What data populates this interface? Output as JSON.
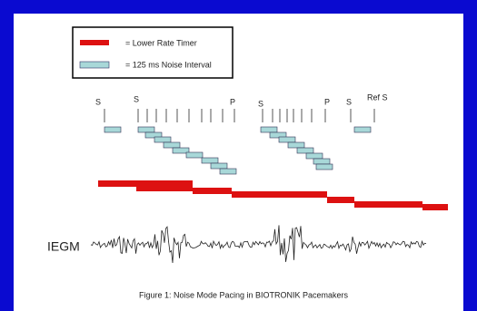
{
  "legend": {
    "items": [
      {
        "label": "= Lower Rate Timer"
      },
      {
        "label": "= 125 ms Noise Interval"
      }
    ]
  },
  "markers": [
    "S",
    "S",
    "P",
    "S",
    "P",
    "S",
    "Ref S"
  ],
  "waveform_label": "IEGM",
  "caption": "Figure 1: Noise Mode Pacing in BIOTRONIK Pacemakers"
}
